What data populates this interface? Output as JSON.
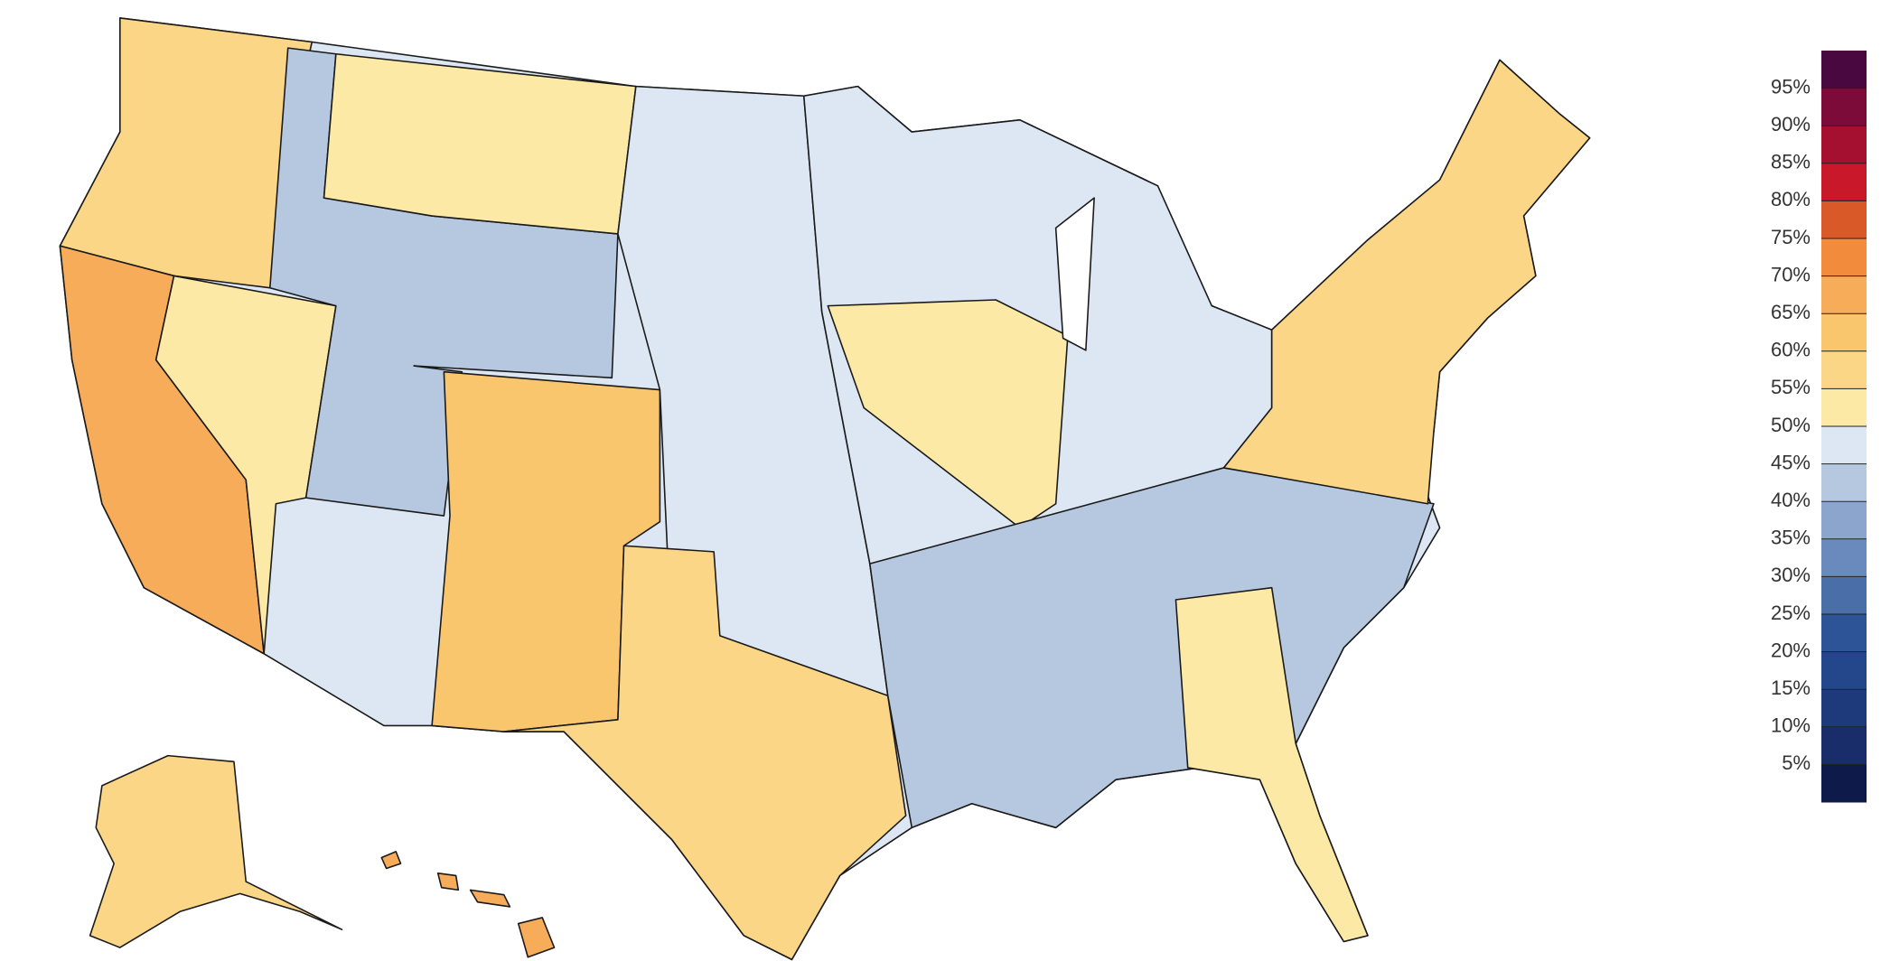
{
  "chart_data": {
    "type": "choropleth",
    "colorbar": {
      "lim": [
        0,
        100
      ],
      "colors": [
        "#0d1a4a",
        "#1a2d6b",
        "#1f3a7a",
        "#24468a",
        "#2d5496",
        "#4a6ea8",
        "#6a89bc",
        "#8ba5cc",
        "#b5c8e0",
        "#dce7f3",
        "#fde9a6",
        "#fbd686",
        "#f9c66e",
        "#f7ac5a",
        "#f38b3d",
        "#d95a28",
        "#c8182a",
        "#a50f30",
        "#7c0b3a",
        "#4a0841"
      ],
      "ticks": [
        {
          "value": 5,
          "label": "5%"
        },
        {
          "value": 10,
          "label": "10%"
        },
        {
          "value": 15,
          "label": "15%"
        },
        {
          "value": 20,
          "label": "20%"
        },
        {
          "value": 25,
          "label": "25%"
        },
        {
          "value": 30,
          "label": "30%"
        },
        {
          "value": 35,
          "label": "35%"
        },
        {
          "value": 40,
          "label": "40%"
        },
        {
          "value": 45,
          "label": "45%"
        },
        {
          "value": 50,
          "label": "50%"
        },
        {
          "value": 55,
          "label": "55%"
        },
        {
          "value": 60,
          "label": "60%"
        },
        {
          "value": 65,
          "label": "65%"
        },
        {
          "value": 70,
          "label": "70%"
        },
        {
          "value": 75,
          "label": "75%"
        },
        {
          "value": 80,
          "label": "80%"
        },
        {
          "value": 85,
          "label": "85%"
        },
        {
          "value": 90,
          "label": "90%"
        },
        {
          "value": 95,
          "label": "95%"
        }
      ]
    }
  }
}
